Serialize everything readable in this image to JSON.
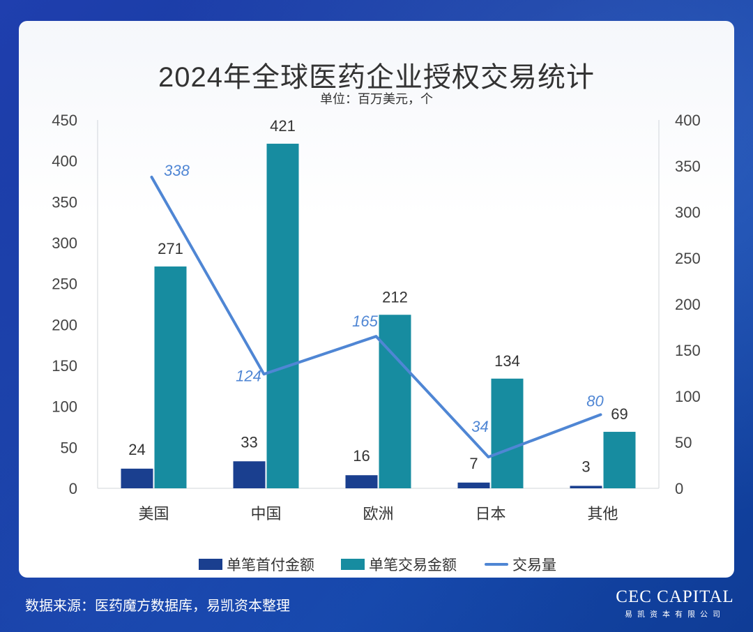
{
  "title": "2024年全球医药企业授权交易统计",
  "subtitle": "单位：百万美元，个",
  "source": "数据来源：医药魔方数据库，易凯资本整理",
  "logo": {
    "main": "CEC CAPITAL",
    "sub": "易凯资本有限公司"
  },
  "colors": {
    "bar_upfront": "#1a3f8f",
    "bar_deal": "#178ca0",
    "line_volume": "#4f86d4"
  },
  "chart_data": {
    "type": "bar",
    "categories": [
      "美国",
      "中国",
      "欧洲",
      "日本",
      "其他"
    ],
    "left_axis": {
      "ylim": [
        0,
        450
      ],
      "ticks": [
        0,
        50,
        100,
        150,
        200,
        250,
        300,
        350,
        400,
        450
      ]
    },
    "right_axis": {
      "ylim": [
        0,
        400
      ],
      "ticks": [
        0,
        50,
        100,
        150,
        200,
        250,
        300,
        350,
        400
      ]
    },
    "series": [
      {
        "name": "单笔首付金额",
        "type": "bar",
        "axis": "left",
        "values": [
          24,
          33,
          16,
          7,
          3
        ]
      },
      {
        "name": "单笔交易金额",
        "type": "bar",
        "axis": "left",
        "values": [
          271,
          421,
          212,
          134,
          69
        ]
      },
      {
        "name": "交易量",
        "type": "line",
        "axis": "right",
        "values": [
          338,
          124,
          165,
          34,
          80
        ]
      }
    ],
    "grid": false,
    "legend_position": "bottom"
  }
}
